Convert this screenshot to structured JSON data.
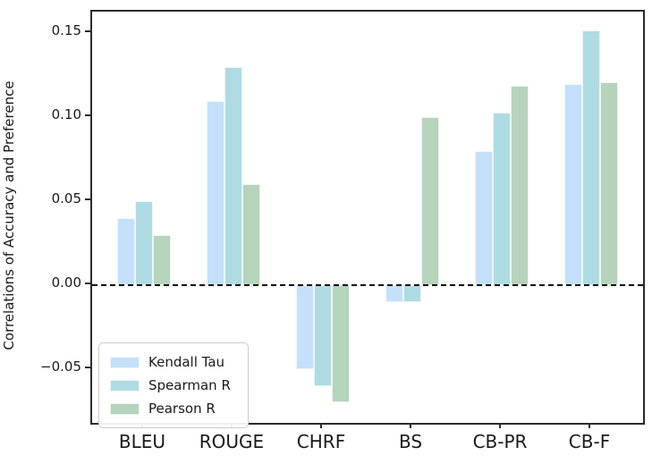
{
  "chart_data": {
    "type": "bar",
    "title": "",
    "xlabel": "",
    "ylabel": "Correlations of Accuracy and Preference",
    "categories": [
      "BLEU",
      "ROUGE",
      "CHRF",
      "BS",
      "CB-PR",
      "CB-F"
    ],
    "series": [
      {
        "name": "Kendall Tau",
        "color": "#C4E0FA",
        "values": [
          0.04,
          0.11,
          -0.05,
          -0.01,
          0.08,
          0.12
        ]
      },
      {
        "name": "Spearman R",
        "color": "#AEDCE2",
        "values": [
          0.05,
          0.13,
          -0.06,
          -0.01,
          0.103,
          0.152
        ]
      },
      {
        "name": "Pearson R",
        "color": "#B6D4BB",
        "values": [
          0.03,
          0.06,
          -0.07,
          0.1,
          0.119,
          0.121
        ]
      }
    ],
    "ylim": [
      -0.082,
      0.163
    ],
    "yticks": [
      0.15,
      0.1,
      0.05,
      0.0,
      -0.05
    ],
    "ytick_labels": [
      "0.15",
      "0.10",
      "0.05",
      "0.00",
      "−0.05"
    ],
    "zero_line": {
      "style": "dashed",
      "color": "#000000"
    },
    "legend": {
      "position": "lower-left"
    },
    "grid": false
  }
}
